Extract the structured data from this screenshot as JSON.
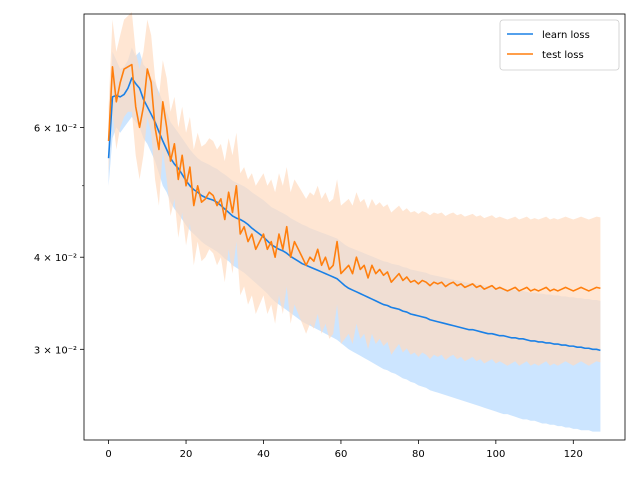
{
  "chart_data": {
    "type": "line",
    "title": "",
    "xlabel": "",
    "ylabel": "",
    "x_scale": "linear",
    "y_scale": "log",
    "xlim": [
      -6.35,
      133.35
    ],
    "ylim": [
      0.0226,
      0.0855
    ],
    "x_ticks": [
      0,
      20,
      40,
      60,
      80,
      100,
      120
    ],
    "x_tick_labels": [
      "0",
      "20",
      "40",
      "60",
      "80",
      "100",
      "120"
    ],
    "y_major_ticks": [
      0.03,
      0.04,
      0.06
    ],
    "y_major_tick_labels": [
      "3 × 10⁻²",
      "4 × 10⁻²",
      "6 × 10⁻²"
    ],
    "y_minor_ticks": [
      0.05
    ],
    "grid": false,
    "legend": {
      "placement": "top-right"
    },
    "x_start": 0,
    "x_step": 1,
    "series": [
      {
        "name": "learn loss",
        "color": "#1a80e6",
        "band_color": "#cce5ff",
        "mean": [
          0.0545,
          0.066,
          0.0663,
          0.066,
          0.0665,
          0.0678,
          0.07,
          0.0688,
          0.0678,
          0.0655,
          0.064,
          0.0625,
          0.061,
          0.0592,
          0.0575,
          0.056,
          0.0545,
          0.0535,
          0.0528,
          0.0518,
          0.0508,
          0.05,
          0.0494,
          0.049,
          0.0485,
          0.0482,
          0.048,
          0.0478,
          0.0475,
          0.047,
          0.0465,
          0.046,
          0.0455,
          0.0452,
          0.045,
          0.0447,
          0.0443,
          0.0438,
          0.0434,
          0.043,
          0.0426,
          0.0421,
          0.0416,
          0.0413,
          0.041,
          0.0408,
          0.0405,
          0.0401,
          0.0398,
          0.0395,
          0.0392,
          0.039,
          0.0388,
          0.0386,
          0.0384,
          0.0382,
          0.038,
          0.0378,
          0.0376,
          0.0374,
          0.037,
          0.0366,
          0.0363,
          0.0361,
          0.0359,
          0.0357,
          0.0355,
          0.0353,
          0.0351,
          0.0349,
          0.0347,
          0.0345,
          0.0344,
          0.0342,
          0.0341,
          0.034,
          0.0338,
          0.0337,
          0.0335,
          0.0334,
          0.0333,
          0.0332,
          0.0331,
          0.0329,
          0.0328,
          0.0327,
          0.0326,
          0.0325,
          0.0324,
          0.0323,
          0.0322,
          0.0321,
          0.032,
          0.0319,
          0.0319,
          0.0318,
          0.0317,
          0.0316,
          0.0315,
          0.0315,
          0.0314,
          0.0313,
          0.0313,
          0.0312,
          0.0311,
          0.0311,
          0.031,
          0.031,
          0.0309,
          0.0308,
          0.0308,
          0.0307,
          0.0307,
          0.0306,
          0.0306,
          0.0305,
          0.0305,
          0.0304,
          0.0304,
          0.0303,
          0.0303,
          0.0302,
          0.0302,
          0.0301,
          0.0301,
          0.03,
          0.03,
          0.0299
        ],
        "upper": [
          0.06,
          0.076,
          0.074,
          0.072,
          0.0725,
          0.074,
          0.077,
          0.075,
          0.076,
          0.073,
          0.072,
          0.07,
          0.069,
          0.067,
          0.065,
          0.063,
          0.061,
          0.06,
          0.059,
          0.058,
          0.057,
          0.056,
          0.0552,
          0.0545,
          0.054,
          0.0537,
          0.0534,
          0.053,
          0.0527,
          0.0522,
          0.0518,
          0.0513,
          0.0508,
          0.0505,
          0.0502,
          0.0499,
          0.0495,
          0.049,
          0.0486,
          0.0482,
          0.0478,
          0.0473,
          0.0468,
          0.0465,
          0.0462,
          0.0459,
          0.0456,
          0.0452,
          0.0449,
          0.0446,
          0.0443,
          0.0441,
          0.0438,
          0.0436,
          0.0434,
          0.0432,
          0.043,
          0.0428,
          0.0426,
          0.0424,
          0.042,
          0.0416,
          0.0413,
          0.0411,
          0.0409,
          0.0407,
          0.0405,
          0.0403,
          0.0401,
          0.0399,
          0.0397,
          0.0395,
          0.0394,
          0.0392,
          0.0391,
          0.039,
          0.0388,
          0.0387,
          0.0385,
          0.0384,
          0.0383,
          0.0382,
          0.0381,
          0.0379,
          0.0378,
          0.0377,
          0.0376,
          0.0375,
          0.0374,
          0.0373,
          0.0372,
          0.0371,
          0.037,
          0.0369,
          0.0369,
          0.0368,
          0.0367,
          0.0366,
          0.0365,
          0.0365,
          0.0364,
          0.0363,
          0.0363,
          0.0362,
          0.0361,
          0.0361,
          0.036,
          0.036,
          0.0359,
          0.0358,
          0.0358,
          0.0357,
          0.0357,
          0.0356,
          0.0356,
          0.0355,
          0.0355,
          0.0354,
          0.0354,
          0.0353,
          0.0353,
          0.0352,
          0.0352,
          0.0351,
          0.0351,
          0.035,
          0.035,
          0.0349
        ],
        "lower": [
          0.05,
          0.058,
          0.06,
          0.059,
          0.06,
          0.061,
          0.062,
          0.061,
          0.06,
          0.058,
          0.057,
          0.0555,
          0.054,
          0.052,
          0.05,
          0.049,
          0.0475,
          0.0465,
          0.0458,
          0.045,
          0.0442,
          0.0435,
          0.043,
          0.0425,
          0.042,
          0.0416,
          0.0413,
          0.041,
          0.0407,
          0.0403,
          0.0398,
          0.0395,
          0.039,
          0.0387,
          0.0384,
          0.0381,
          0.0377,
          0.0373,
          0.0369,
          0.0365,
          0.0361,
          0.0357,
          0.0352,
          0.0348,
          0.0345,
          0.0342,
          0.0339,
          0.0336,
          0.0333,
          0.033,
          0.0327,
          0.0325,
          0.0323,
          0.0321,
          0.0319,
          0.0317,
          0.0315,
          0.0313,
          0.0311,
          0.0309,
          0.0306,
          0.0303,
          0.03,
          0.0298,
          0.0296,
          0.0294,
          0.0292,
          0.029,
          0.0288,
          0.0286,
          0.0284,
          0.0282,
          0.0281,
          0.0279,
          0.0278,
          0.0276,
          0.0274,
          0.0273,
          0.0271,
          0.027,
          0.0268,
          0.0267,
          0.0266,
          0.0264,
          0.0263,
          0.0262,
          0.0261,
          0.026,
          0.0259,
          0.0258,
          0.0257,
          0.0256,
          0.0255,
          0.0254,
          0.0253,
          0.0252,
          0.0251,
          0.025,
          0.0249,
          0.0248,
          0.0247,
          0.0246,
          0.0245,
          0.0245,
          0.0244,
          0.0243,
          0.0242,
          0.0241,
          0.0241,
          0.024,
          0.024,
          0.0239,
          0.0238,
          0.0238,
          0.0237,
          0.0237,
          0.0236,
          0.0236,
          0.0235,
          0.0235,
          0.0234,
          0.0234,
          0.0233,
          0.0233,
          0.0233,
          0.0232,
          0.0232,
          0.0232
        ]
      },
      {
        "name": "test loss",
        "color": "#ff7f0e",
        "band_color": "#ffdcc0",
        "mean": [
          0.0575,
          0.0725,
          0.065,
          0.069,
          0.072,
          0.0725,
          0.073,
          0.064,
          0.06,
          0.064,
          0.072,
          0.069,
          0.06,
          0.056,
          0.065,
          0.06,
          0.054,
          0.057,
          0.051,
          0.055,
          0.05,
          0.053,
          0.047,
          0.05,
          0.0475,
          0.048,
          0.049,
          0.0485,
          0.047,
          0.048,
          0.045,
          0.049,
          0.046,
          0.05,
          0.043,
          0.044,
          0.042,
          0.043,
          0.041,
          0.042,
          0.043,
          0.041,
          0.042,
          0.04,
          0.043,
          0.041,
          0.044,
          0.04,
          0.042,
          0.041,
          0.04,
          0.039,
          0.04,
          0.0395,
          0.041,
          0.039,
          0.04,
          0.0385,
          0.039,
          0.042,
          0.038,
          0.0385,
          0.039,
          0.038,
          0.04,
          0.0385,
          0.039,
          0.0375,
          0.039,
          0.038,
          0.0385,
          0.0378,
          0.0382,
          0.037,
          0.0375,
          0.038,
          0.0372,
          0.0376,
          0.037,
          0.0372,
          0.0368,
          0.0372,
          0.037,
          0.0366,
          0.037,
          0.0368,
          0.037,
          0.0365,
          0.0368,
          0.037,
          0.0366,
          0.0368,
          0.0364,
          0.0366,
          0.0368,
          0.0364,
          0.0366,
          0.0362,
          0.0364,
          0.0366,
          0.0362,
          0.0364,
          0.0362,
          0.036,
          0.0362,
          0.0364,
          0.036,
          0.0362,
          0.0364,
          0.036,
          0.0362,
          0.036,
          0.0362,
          0.0364,
          0.036,
          0.0362,
          0.036,
          0.0362,
          0.0364,
          0.0362,
          0.036,
          0.0362,
          0.0364,
          0.0362,
          0.036,
          0.0362,
          0.0364,
          0.0363
        ],
        "upper": [
          0.064,
          0.084,
          0.076,
          0.08,
          0.084,
          0.085,
          0.086,
          0.076,
          0.072,
          0.076,
          0.084,
          0.08,
          0.07,
          0.066,
          0.074,
          0.07,
          0.063,
          0.066,
          0.06,
          0.064,
          0.059,
          0.062,
          0.056,
          0.059,
          0.0565,
          0.057,
          0.058,
          0.0575,
          0.056,
          0.057,
          0.054,
          0.058,
          0.055,
          0.059,
          0.052,
          0.053,
          0.051,
          0.052,
          0.05,
          0.051,
          0.052,
          0.05,
          0.051,
          0.049,
          0.052,
          0.05,
          0.053,
          0.049,
          0.051,
          0.05,
          0.049,
          0.048,
          0.049,
          0.0485,
          0.05,
          0.048,
          0.049,
          0.0475,
          0.048,
          0.051,
          0.047,
          0.0475,
          0.048,
          0.047,
          0.049,
          0.0475,
          0.048,
          0.0465,
          0.048,
          0.047,
          0.0475,
          0.0468,
          0.0472,
          0.046,
          0.0465,
          0.047,
          0.0462,
          0.0466,
          0.046,
          0.0462,
          0.0458,
          0.0462,
          0.046,
          0.0456,
          0.046,
          0.0458,
          0.046,
          0.0455,
          0.0458,
          0.046,
          0.0456,
          0.0458,
          0.0454,
          0.0456,
          0.0458,
          0.0454,
          0.0456,
          0.0452,
          0.0454,
          0.0456,
          0.0452,
          0.0454,
          0.0452,
          0.045,
          0.0452,
          0.0454,
          0.045,
          0.0452,
          0.0454,
          0.045,
          0.0452,
          0.045,
          0.0452,
          0.0454,
          0.045,
          0.0452,
          0.045,
          0.0452,
          0.0454,
          0.0452,
          0.045,
          0.0452,
          0.0454,
          0.0452,
          0.045,
          0.0452,
          0.0454,
          0.0453
        ],
        "lower": [
          0.052,
          0.063,
          0.056,
          0.06,
          0.062,
          0.063,
          0.063,
          0.055,
          0.051,
          0.055,
          0.062,
          0.059,
          0.051,
          0.047,
          0.056,
          0.051,
          0.0455,
          0.048,
          0.0425,
          0.046,
          0.0415,
          0.0445,
          0.039,
          0.042,
          0.0395,
          0.04,
          0.041,
          0.0405,
          0.039,
          0.04,
          0.037,
          0.041,
          0.038,
          0.042,
          0.0355,
          0.0365,
          0.0345,
          0.0355,
          0.0335,
          0.0345,
          0.0355,
          0.0335,
          0.0345,
          0.0325,
          0.0355,
          0.0335,
          0.0365,
          0.0325,
          0.0345,
          0.0335,
          0.0325,
          0.0315,
          0.0325,
          0.032,
          0.0335,
          0.0315,
          0.0325,
          0.031,
          0.0315,
          0.0345,
          0.0305,
          0.031,
          0.0315,
          0.0305,
          0.0325,
          0.031,
          0.0315,
          0.03,
          0.0315,
          0.0305,
          0.031,
          0.0303,
          0.0307,
          0.0295,
          0.03,
          0.0305,
          0.0297,
          0.0301,
          0.0295,
          0.0297,
          0.0293,
          0.0297,
          0.0295,
          0.0291,
          0.0295,
          0.0293,
          0.0295,
          0.029,
          0.0293,
          0.0295,
          0.0291,
          0.0293,
          0.0289,
          0.0291,
          0.0293,
          0.0289,
          0.0291,
          0.0287,
          0.0289,
          0.0291,
          0.0287,
          0.0289,
          0.0287,
          0.0285,
          0.0287,
          0.0289,
          0.0285,
          0.0287,
          0.0289,
          0.0285,
          0.0287,
          0.0285,
          0.0287,
          0.0289,
          0.0285,
          0.0287,
          0.0285,
          0.0287,
          0.0289,
          0.0287,
          0.0285,
          0.0287,
          0.0289,
          0.0287,
          0.0285,
          0.0287,
          0.0289,
          0.0288
        ]
      }
    ]
  }
}
